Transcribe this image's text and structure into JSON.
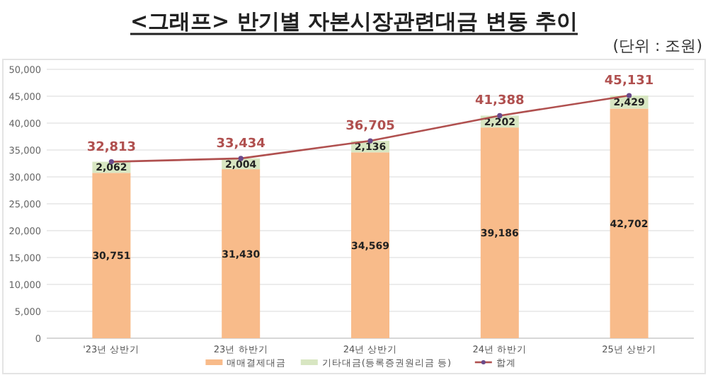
{
  "chart_data": {
    "type": "bar",
    "stacked": true,
    "title": "<그래프> 반기별 자본시장관련대금 변동 추이",
    "annotations": [
      "(단위 : 조원)"
    ],
    "categories": [
      "'23년 상반기",
      "23년 하반기",
      "24년 상반기",
      "24년 하반기",
      "25년 상반기"
    ],
    "series": [
      {
        "name": "매매결제대금",
        "color": "#f8bb8a",
        "values": [
          30751,
          31430,
          34569,
          39186,
          42702
        ],
        "value_labels": [
          "30,751",
          "31,430",
          "34,569",
          "39,186",
          "42,702"
        ]
      },
      {
        "name": "기타대금(등록증권원리금 등)",
        "color": "#d8e6c2",
        "values": [
          2062,
          2004,
          2136,
          2202,
          2429
        ],
        "value_labels": [
          "2,062",
          "2,004",
          "2,136",
          "2,202",
          "2,429"
        ]
      },
      {
        "name": "합계",
        "type": "line",
        "color": "#b0504f",
        "marker": "circle",
        "values": [
          32813,
          33434,
          36705,
          41388,
          45131
        ],
        "value_labels": [
          "32,813",
          "33,434",
          "36,705",
          "41,388",
          "45,131"
        ]
      }
    ],
    "ylim": [
      0,
      50000
    ],
    "yticks": [
      {
        "value": 0,
        "label": "0"
      },
      {
        "value": 5000,
        "label": "5,000"
      },
      {
        "value": 10000,
        "label": "10,000"
      },
      {
        "value": 15000,
        "label": "15,000"
      },
      {
        "value": 20000,
        "label": "20,000"
      },
      {
        "value": 25000,
        "label": "25,000"
      },
      {
        "value": 30000,
        "label": "30,000"
      },
      {
        "value": 35000,
        "label": "35,000"
      },
      {
        "value": 40000,
        "label": "40,000"
      },
      {
        "value": 45000,
        "label": "45,000"
      },
      {
        "value": 50000,
        "label": "50,000"
      }
    ],
    "grid": "y",
    "legend": "bottom"
  }
}
